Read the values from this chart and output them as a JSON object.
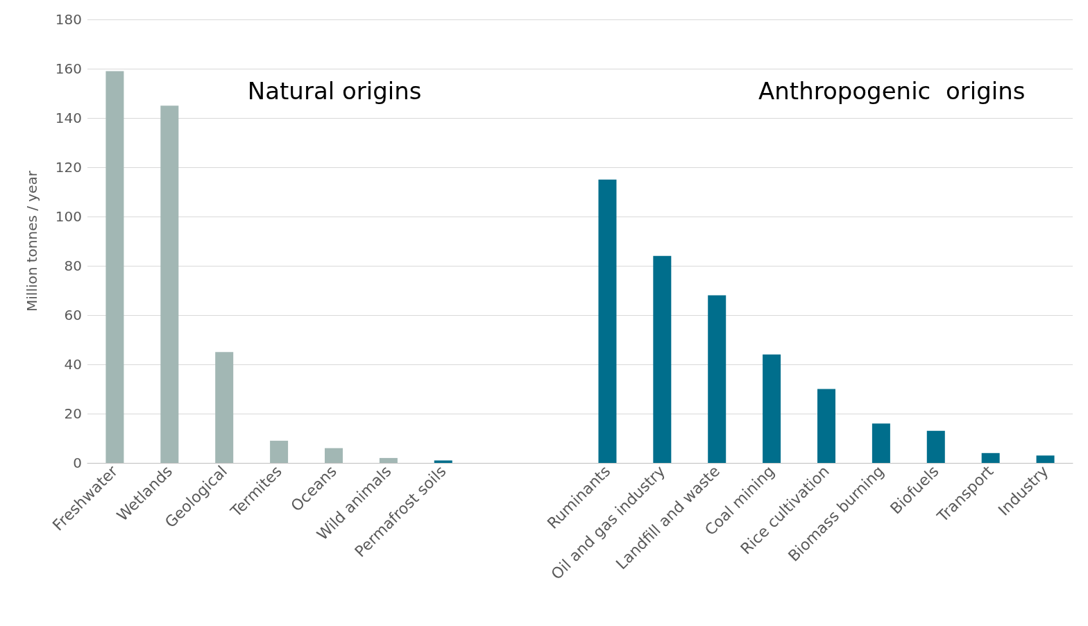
{
  "chart_data": {
    "type": "bar",
    "ylabel": "Million tonnes / year",
    "categories": [
      "Freshwater",
      "Wetlands",
      "Geological",
      "Termites",
      "Oceans",
      "Wild animals",
      "Permafrost soils",
      null,
      null,
      "Ruminants",
      "Oil and gas industry",
      "Landfill and waste",
      "Coal mining",
      "Rice cultivation",
      "Biomass burning",
      "Biofuels",
      "Transport",
      "Industry"
    ],
    "values": [
      159,
      145,
      45,
      9,
      6,
      2,
      1,
      null,
      null,
      115,
      84,
      68,
      44,
      30,
      16,
      13,
      4,
      3
    ],
    "colors": [
      "#a2b7b4",
      "#a2b7b4",
      "#a2b7b4",
      "#a2b7b4",
      "#a2b7b4",
      "#a2b7b4",
      "#006e8c",
      null,
      null,
      "#006e8c",
      "#006e8c",
      "#006e8c",
      "#006e8c",
      "#006e8c",
      "#006e8c",
      "#006e8c",
      "#006e8c",
      "#006e8c"
    ],
    "ylim": [
      0,
      180
    ],
    "yticks": [
      0,
      20,
      40,
      60,
      80,
      100,
      120,
      140,
      160,
      180
    ],
    "grid": "y",
    "annotations": [
      "Natural origins",
      "Anthropogenic  origins"
    ]
  }
}
